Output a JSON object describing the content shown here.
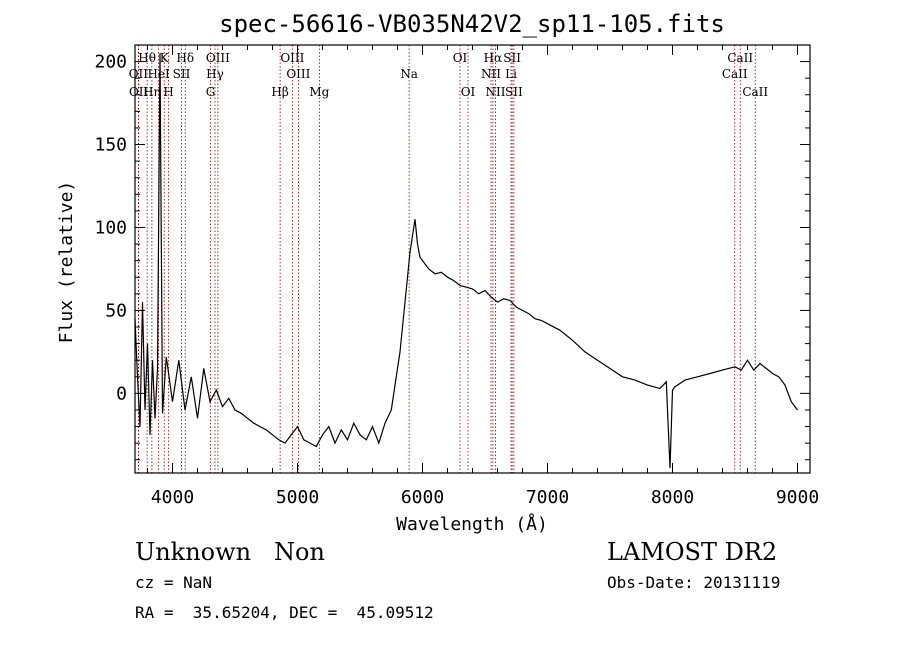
{
  "chart_data": {
    "type": "line",
    "title": "spec-56616-VB035N42V2_sp11-105.fits",
    "xlabel": "Wavelength (Å)",
    "ylabel": "Flux (relative)",
    "xlim": [
      3700,
      9100
    ],
    "ylim": [
      -48,
      210
    ],
    "xticks": [
      4000,
      5000,
      6000,
      7000,
      8000,
      9000
    ],
    "yticks": [
      0,
      50,
      100,
      150,
      200
    ],
    "grid": false,
    "line_color": "#000000",
    "marker_color": "#8b0000",
    "series": [
      {
        "x": [
          3700,
          3720,
          3740,
          3760,
          3780,
          3800,
          3820,
          3840,
          3860,
          3880,
          3900,
          3920,
          3950,
          4000,
          4050,
          4100,
          4150,
          4200,
          4250,
          4300,
          4350,
          4400,
          4450,
          4500,
          4550,
          4600,
          4650,
          4700,
          4750,
          4800,
          4850,
          4900,
          4950,
          5000,
          5050,
          5100,
          5150,
          5200,
          5250,
          5300,
          5350,
          5400,
          5450,
          5500,
          5550,
          5600,
          5650,
          5700,
          5750,
          5780,
          5800,
          5820,
          5840,
          5860,
          5880,
          5900,
          5920,
          5940,
          5960,
          5980,
          6000,
          6050,
          6100,
          6150,
          6200,
          6250,
          6300,
          6350,
          6400,
          6450,
          6500,
          6550,
          6600,
          6650,
          6700,
          6750,
          6800,
          6850,
          6900,
          6950,
          7000,
          7100,
          7200,
          7300,
          7400,
          7500,
          7600,
          7700,
          7800,
          7900,
          7950,
          7980,
          8000,
          8020,
          8100,
          8200,
          8300,
          8400,
          8500,
          8550,
          8600,
          8650,
          8700,
          8750,
          8800,
          8850,
          8900,
          8950,
          9000
        ],
        "y": [
          45,
          10,
          -20,
          55,
          -10,
          30,
          -25,
          20,
          -15,
          15,
          205,
          -12,
          22,
          -5,
          20,
          -10,
          10,
          -15,
          15,
          -5,
          2,
          -8,
          -3,
          -10,
          -12,
          -15,
          -18,
          -20,
          -22,
          -25,
          -28,
          -30,
          -25,
          -20,
          -28,
          -30,
          -32,
          -25,
          -20,
          -30,
          -22,
          -28,
          -18,
          -25,
          -28,
          -20,
          -30,
          -18,
          -10,
          5,
          15,
          25,
          40,
          55,
          70,
          85,
          95,
          105,
          90,
          82,
          80,
          75,
          72,
          73,
          70,
          68,
          65,
          64,
          63,
          60,
          62,
          58,
          55,
          57,
          56,
          52,
          50,
          48,
          45,
          44,
          42,
          38,
          32,
          25,
          20,
          15,
          10,
          8,
          5,
          3,
          7,
          -45,
          2,
          4,
          8,
          10,
          12,
          14,
          16,
          14,
          20,
          14,
          18,
          15,
          12,
          10,
          5,
          -5,
          -10
        ]
      }
    ],
    "lines": [
      {
        "label": "Hθ",
        "x": 3797,
        "row": 1
      },
      {
        "label": "OII",
        "x": 3727,
        "row": 2
      },
      {
        "label": "OII",
        "x": 3729,
        "row": 3
      },
      {
        "label": "Hη",
        "x": 3835,
        "row": 3
      },
      {
        "label": "K",
        "x": 3934,
        "row": 1
      },
      {
        "label": "HeI",
        "x": 3889,
        "row": 2
      },
      {
        "label": "H",
        "x": 3969,
        "row": 3
      },
      {
        "label": "SII",
        "x": 4072,
        "row": 2
      },
      {
        "label": "Hδ",
        "x": 4102,
        "row": 1
      },
      {
        "label": "OIII",
        "x": 4363,
        "row": 1
      },
      {
        "label": "Hγ",
        "x": 4340,
        "row": 2
      },
      {
        "label": "G",
        "x": 4304,
        "row": 3
      },
      {
        "label": "OIII",
        "x": 4959,
        "row": 1
      },
      {
        "label": "OIII",
        "x": 5007,
        "row": 2
      },
      {
        "label": "Hβ",
        "x": 4861,
        "row": 3
      },
      {
        "label": "Mg",
        "x": 5175,
        "row": 3
      },
      {
        "label": "Na",
        "x": 5893,
        "row": 2
      },
      {
        "label": "OI",
        "x": 6300,
        "row": 1
      },
      {
        "label": "OI",
        "x": 6364,
        "row": 3
      },
      {
        "label": "Hα",
        "x": 6563,
        "row": 1
      },
      {
        "label": "NII",
        "x": 6548,
        "row": 2
      },
      {
        "label": "NII",
        "x": 6584,
        "row": 3
      },
      {
        "label": "SII",
        "x": 6717,
        "row": 1
      },
      {
        "label": "Li",
        "x": 6708,
        "row": 2
      },
      {
        "label": "SII",
        "x": 6731,
        "row": 3
      },
      {
        "label": "CaII",
        "x": 8542,
        "row": 1
      },
      {
        "label": "CaII",
        "x": 8498,
        "row": 2
      },
      {
        "label": "CaII",
        "x": 8662,
        "row": 3
      }
    ]
  },
  "info": {
    "class_text": "Unknown   Non",
    "survey": "LAMOST DR2",
    "cz": "cz = NaN",
    "obs_date": "Obs-Date: 20131119",
    "coords": "RA =  35.65204, DEC =  45.09512"
  }
}
